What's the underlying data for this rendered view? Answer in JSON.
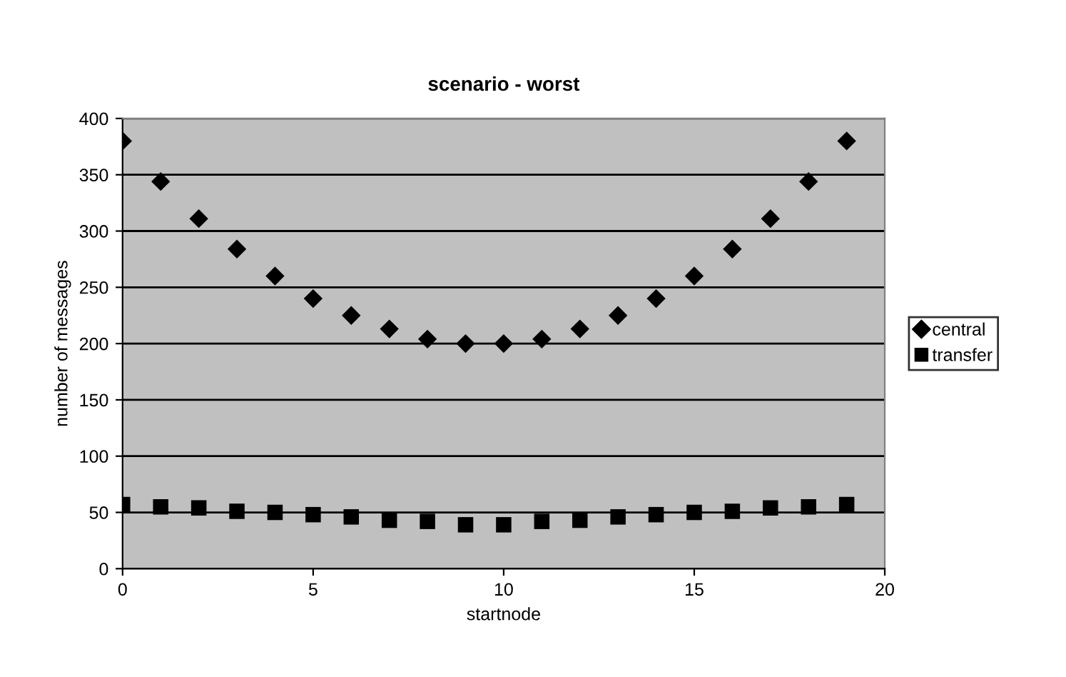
{
  "chart_data": {
    "type": "scatter",
    "title": "scenario - worst",
    "xlabel": "startnode",
    "ylabel": "number of messages",
    "x": [
      0,
      1,
      2,
      3,
      4,
      5,
      6,
      7,
      8,
      9,
      10,
      11,
      12,
      13,
      14,
      15,
      16,
      17,
      18,
      19
    ],
    "series": [
      {
        "name": "central",
        "color": "#000000",
        "marker": "diamond",
        "values": [
          380,
          344,
          311,
          284,
          260,
          240,
          225,
          213,
          204,
          200,
          200,
          204,
          213,
          225,
          240,
          260,
          284,
          311,
          344,
          380
        ]
      },
      {
        "name": "transfer",
        "color": "#000000",
        "marker": "square",
        "values": [
          57,
          55,
          54,
          51,
          50,
          48,
          46,
          43,
          42,
          39,
          39,
          42,
          43,
          46,
          48,
          50,
          51,
          54,
          55,
          57
        ]
      }
    ],
    "xlim": [
      0,
      20
    ],
    "xticks": [
      0,
      5,
      10,
      15,
      20
    ],
    "ylim": [
      0,
      400
    ],
    "yticks": [
      0,
      50,
      100,
      150,
      200,
      250,
      300,
      350,
      400
    ],
    "grid": "y",
    "legend": "right"
  }
}
